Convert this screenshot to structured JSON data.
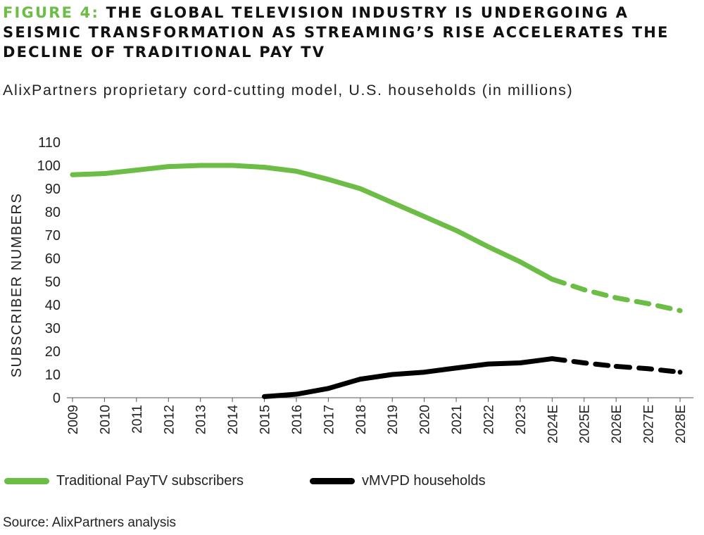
{
  "header": {
    "figure_label": "FIGURE 4:",
    "title": "THE GLOBAL TELEVISION INDUSTRY IS UNDERGOING A SEISMIC TRANSFORMATION AS STREAMING’S RISE ACCELERATES THE DECLINE OF TRADITIONAL PAY TV",
    "subtitle": "AlixPartners proprietary cord-cutting model, U.S. households (in millions)"
  },
  "chart_data": {
    "type": "line",
    "title": "THE GLOBAL TELEVISION INDUSTRY IS UNDERGOING A SEISMIC TRANSFORMATION AS STREAMING’S RISE ACCELERATES THE DECLINE OF TRADITIONAL PAY TV",
    "subtitle": "AlixPartners proprietary cord-cutting model, U.S. households (in millions)",
    "xlabel": "",
    "ylabel": "SUBSCRIBER NUMBERS",
    "ylim": [
      0,
      110
    ],
    "yticks": [
      0,
      10,
      20,
      30,
      40,
      50,
      60,
      70,
      80,
      90,
      100,
      110
    ],
    "grid": false,
    "categories": [
      "2009",
      "2010",
      "2011",
      "2012",
      "2013",
      "2014",
      "2015",
      "2016",
      "2017",
      "2018",
      "2019",
      "2020",
      "2021",
      "2022",
      "2023",
      "2024E",
      "2025E",
      "2026E",
      "2027E",
      "2028E"
    ],
    "forecast_start": "2024E",
    "series": [
      {
        "name": "Traditional PayTV subscribers",
        "color": "#6bbd45",
        "values": [
          96,
          96.5,
          98,
          99.5,
          100,
          100,
          99.2,
          97.5,
          94,
          90,
          84,
          78,
          72,
          65,
          58.5,
          51,
          46.5,
          43,
          40.5,
          37.5
        ]
      },
      {
        "name": "vMVPD households",
        "color": "#000000",
        "values": [
          null,
          null,
          null,
          null,
          null,
          null,
          0.5,
          1.5,
          4,
          8,
          10,
          11,
          12.8,
          14.5,
          15,
          16.8,
          15,
          13.5,
          12.5,
          11
        ]
      }
    ]
  },
  "legend": {
    "items": [
      {
        "label": "Traditional PayTV subscribers",
        "color": "#6bbd45"
      },
      {
        "label": "vMVPD households",
        "color": "#000000"
      }
    ]
  },
  "footer": {
    "source": "Source: AlixPartners analysis"
  }
}
